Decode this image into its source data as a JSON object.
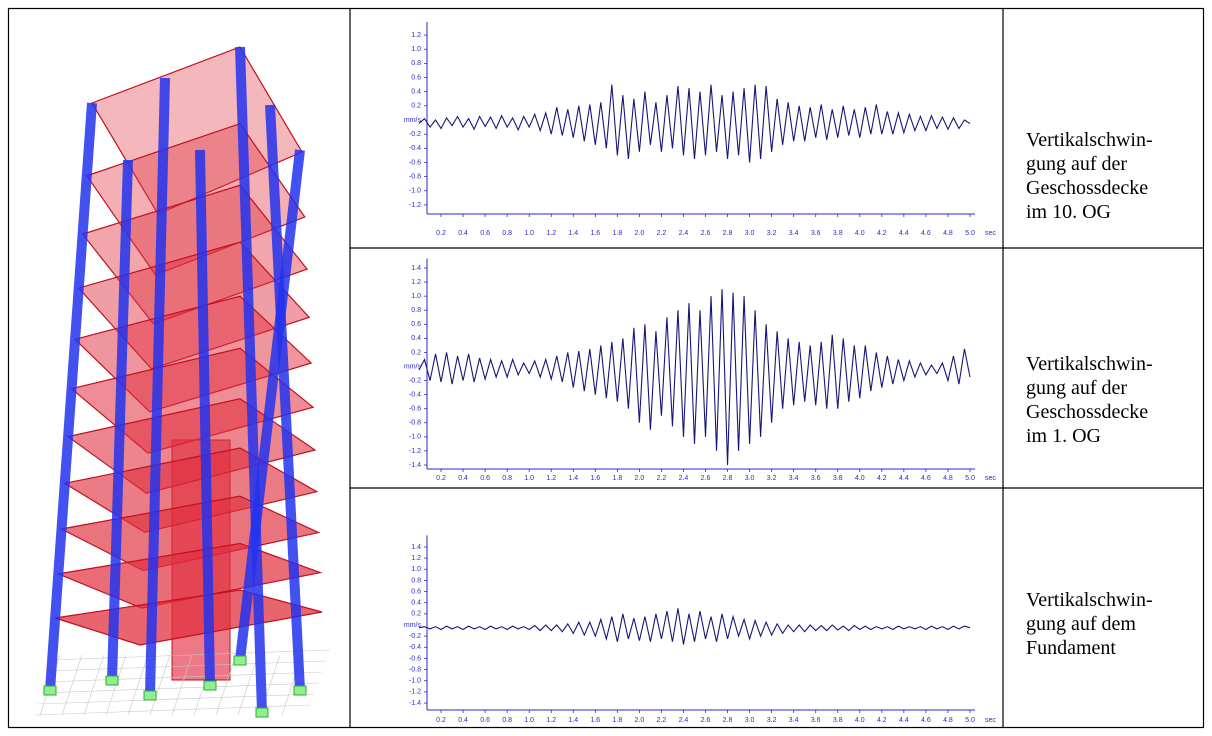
{
  "chart_data": [
    {
      "type": "line",
      "y_label": "mm/s",
      "x_label": "sec",
      "color": "#16167a",
      "axis_color": "#2b2bd0",
      "x": [
        0,
        0.05,
        0.1,
        0.15,
        0.2,
        0.25,
        0.3,
        0.35,
        0.4,
        0.45,
        0.5,
        0.55,
        0.6,
        0.65,
        0.7,
        0.75,
        0.8,
        0.85,
        0.9,
        0.95,
        1,
        1.05,
        1.1,
        1.15,
        1.2,
        1.25,
        1.3,
        1.35,
        1.4,
        1.45,
        1.5,
        1.55,
        1.6,
        1.65,
        1.7,
        1.75,
        1.8,
        1.85,
        1.9,
        1.95,
        2,
        2.05,
        2.1,
        2.15,
        2.2,
        2.25,
        2.3,
        2.35,
        2.4,
        2.45,
        2.5,
        2.55,
        2.6,
        2.65,
        2.7,
        2.75,
        2.8,
        2.85,
        2.9,
        2.95,
        3,
        3.05,
        3.1,
        3.15,
        3.2,
        3.25,
        3.3,
        3.35,
        3.4,
        3.45,
        3.5,
        3.55,
        3.6,
        3.65,
        3.7,
        3.75,
        3.8,
        3.85,
        3.9,
        3.95,
        4,
        4.05,
        4.1,
        4.15,
        4.2,
        4.25,
        4.3,
        4.35,
        4.4,
        4.45,
        4.5,
        4.55,
        4.6,
        4.65,
        4.7,
        4.75,
        4.8,
        4.85,
        4.9,
        4.95,
        5
      ],
      "values": [
        -0.05,
        0.02,
        -0.1,
        0.0,
        -0.12,
        0.03,
        -0.08,
        0.05,
        -0.1,
        0.02,
        -0.13,
        0.05,
        -0.09,
        0.04,
        -0.12,
        0.06,
        -0.1,
        0.03,
        -0.14,
        0.05,
        -0.1,
        0.08,
        -0.15,
        0.1,
        -0.2,
        0.18,
        -0.22,
        0.15,
        -0.25,
        0.2,
        -0.3,
        0.22,
        -0.35,
        0.25,
        -0.4,
        0.5,
        -0.5,
        0.35,
        -0.55,
        0.3,
        -0.45,
        0.4,
        -0.35,
        0.25,
        -0.45,
        0.35,
        -0.4,
        0.48,
        -0.5,
        0.45,
        -0.55,
        0.4,
        -0.5,
        0.5,
        -0.45,
        0.35,
        -0.55,
        0.4,
        -0.5,
        0.45,
        -0.6,
        0.5,
        -0.55,
        0.48,
        -0.45,
        0.3,
        -0.35,
        0.25,
        -0.3,
        0.2,
        -0.3,
        0.18,
        -0.25,
        0.22,
        -0.28,
        0.15,
        -0.25,
        0.2,
        -0.22,
        0.15,
        -0.25,
        0.18,
        -0.2,
        0.22,
        -0.2,
        0.12,
        -0.2,
        0.1,
        -0.18,
        0.08,
        -0.15,
        0.05,
        -0.15,
        0.06,
        -0.12,
        0.04,
        -0.13,
        0.03,
        -0.12,
        0.0,
        -0.05
      ],
      "xlim": [
        0,
        5.1
      ],
      "ylim": [
        -1.3,
        1.3
      ],
      "xticks": [
        0.2,
        0.4,
        0.6,
        0.8,
        {
          "value": 1,
          "label": "1.0"
        },
        1.2,
        1.4,
        1.6,
        1.8,
        {
          "value": 2,
          "label": "2.0"
        },
        2.2,
        2.4,
        2.6,
        2.8,
        {
          "value": 3,
          "label": "3.0"
        },
        3.2,
        3.4,
        3.6,
        3.8,
        {
          "value": 4,
          "label": "4.0"
        },
        4.2,
        4.4,
        4.6,
        4.8,
        {
          "value": 5,
          "label": "5.0"
        }
      ],
      "yticks": [
        1.2,
        {
          "value": 1,
          "label": "1.0"
        },
        0.8,
        0.6,
        0.4,
        0.2,
        -0.2,
        -0.4,
        -0.6,
        -0.8,
        {
          "value": -1,
          "label": "-1.0"
        },
        -1.2
      ]
    },
    {
      "type": "line",
      "y_label": "mm/s",
      "x_label": "sec",
      "color": "#16167a",
      "axis_color": "#2b2bd0",
      "x": [
        0,
        0.05,
        0.1,
        0.15,
        0.2,
        0.25,
        0.3,
        0.35,
        0.4,
        0.45,
        0.5,
        0.55,
        0.6,
        0.65,
        0.7,
        0.75,
        0.8,
        0.85,
        0.9,
        0.95,
        1,
        1.05,
        1.1,
        1.15,
        1.2,
        1.25,
        1.3,
        1.35,
        1.4,
        1.45,
        1.5,
        1.55,
        1.6,
        1.65,
        1.7,
        1.75,
        1.8,
        1.85,
        1.9,
        1.95,
        2,
        2.05,
        2.1,
        2.15,
        2.2,
        2.25,
        2.3,
        2.35,
        2.4,
        2.45,
        2.5,
        2.55,
        2.6,
        2.65,
        2.7,
        2.75,
        2.8,
        2.85,
        2.9,
        2.95,
        3,
        3.05,
        3.1,
        3.15,
        3.2,
        3.25,
        3.3,
        3.35,
        3.4,
        3.45,
        3.5,
        3.55,
        3.6,
        3.65,
        3.7,
        3.75,
        3.8,
        3.85,
        3.9,
        3.95,
        4,
        4.05,
        4.1,
        4.15,
        4.2,
        4.25,
        4.3,
        4.35,
        4.4,
        4.45,
        4.5,
        4.55,
        4.6,
        4.65,
        4.7,
        4.75,
        4.8,
        4.85,
        4.9,
        4.95,
        5
      ],
      "values": [
        -0.05,
        0.1,
        -0.2,
        0.18,
        -0.22,
        0.2,
        -0.25,
        0.15,
        -0.2,
        0.18,
        -0.22,
        0.12,
        -0.18,
        0.1,
        -0.15,
        0.08,
        -0.15,
        0.1,
        -0.12,
        0.05,
        -0.1,
        0.08,
        -0.15,
        0.1,
        -0.18,
        0.15,
        -0.22,
        0.2,
        -0.3,
        0.22,
        -0.35,
        0.25,
        -0.4,
        0.3,
        -0.45,
        0.35,
        -0.5,
        0.4,
        -0.6,
        0.55,
        -0.8,
        0.6,
        -0.9,
        0.5,
        -0.7,
        0.7,
        -0.85,
        0.8,
        -1.0,
        0.9,
        -1.1,
        0.8,
        -1.0,
        1.0,
        -1.2,
        1.1,
        -1.4,
        1.05,
        -1.2,
        1.0,
        -1.1,
        0.8,
        -1.0,
        0.6,
        -0.8,
        0.5,
        -0.6,
        0.4,
        -0.55,
        0.35,
        -0.5,
        0.3,
        -0.55,
        0.35,
        -0.6,
        0.45,
        -0.6,
        0.4,
        -0.5,
        0.3,
        -0.45,
        0.3,
        -0.35,
        0.2,
        -0.3,
        0.15,
        -0.25,
        0.1,
        -0.2,
        0.08,
        -0.15,
        0.05,
        -0.12,
        0.02,
        -0.1,
        0.05,
        -0.2,
        0.15,
        -0.25,
        0.25,
        -0.15
      ],
      "xlim": [
        0,
        5.1
      ],
      "ylim": [
        -1.45,
        1.45
      ],
      "xticks": [
        0.2,
        0.4,
        0.6,
        0.8,
        {
          "value": 1,
          "label": "1.0"
        },
        1.2,
        1.4,
        1.6,
        1.8,
        {
          "value": 2,
          "label": "2.0"
        },
        2.2,
        2.4,
        2.6,
        2.8,
        {
          "value": 3,
          "label": "3.0"
        },
        3.2,
        3.4,
        3.6,
        3.8,
        {
          "value": 4,
          "label": "4.0"
        },
        4.2,
        4.4,
        4.6,
        4.8,
        {
          "value": 5,
          "label": "5.0"
        }
      ],
      "yticks": [
        1.4,
        1.2,
        {
          "value": 1,
          "label": "1.0"
        },
        0.8,
        0.6,
        0.4,
        0.2,
        -0.2,
        -0.4,
        -0.6,
        -0.8,
        {
          "value": -1,
          "label": "-1.0"
        },
        -1.2,
        -1.4
      ]
    },
    {
      "type": "line",
      "y_label": "mm/s",
      "x_label": "sec",
      "color": "#16167a",
      "axis_color": "#2b2bd0",
      "x": [
        0,
        0.05,
        0.1,
        0.15,
        0.2,
        0.25,
        0.3,
        0.35,
        0.4,
        0.45,
        0.5,
        0.55,
        0.6,
        0.65,
        0.7,
        0.75,
        0.8,
        0.85,
        0.9,
        0.95,
        1,
        1.05,
        1.1,
        1.15,
        1.2,
        1.25,
        1.3,
        1.35,
        1.4,
        1.45,
        1.5,
        1.55,
        1.6,
        1.65,
        1.7,
        1.75,
        1.8,
        1.85,
        1.9,
        1.95,
        2,
        2.05,
        2.1,
        2.15,
        2.2,
        2.25,
        2.3,
        2.35,
        2.4,
        2.45,
        2.5,
        2.55,
        2.6,
        2.65,
        2.7,
        2.75,
        2.8,
        2.85,
        2.9,
        2.95,
        3,
        3.05,
        3.1,
        3.15,
        3.2,
        3.25,
        3.3,
        3.35,
        3.4,
        3.45,
        3.5,
        3.55,
        3.6,
        3.65,
        3.7,
        3.75,
        3.8,
        3.85,
        3.9,
        3.95,
        4,
        4.05,
        4.1,
        4.15,
        4.2,
        4.25,
        4.3,
        4.35,
        4.4,
        4.45,
        4.5,
        4.55,
        4.6,
        4.65,
        4.7,
        4.75,
        4.8,
        4.85,
        4.9,
        4.95,
        5
      ],
      "values": [
        -0.05,
        -0.03,
        -0.07,
        -0.03,
        -0.08,
        -0.02,
        -0.07,
        -0.03,
        -0.08,
        -0.02,
        -0.07,
        -0.03,
        -0.08,
        -0.02,
        -0.07,
        -0.03,
        -0.08,
        -0.02,
        -0.07,
        -0.03,
        -0.08,
        -0.01,
        -0.1,
        0.0,
        -0.1,
        0.0,
        -0.12,
        0.02,
        -0.15,
        0.05,
        -0.18,
        0.05,
        -0.2,
        0.1,
        -0.25,
        0.15,
        -0.3,
        0.2,
        -0.25,
        0.12,
        -0.28,
        0.15,
        -0.3,
        0.2,
        -0.25,
        0.25,
        -0.3,
        0.3,
        -0.35,
        0.2,
        -0.3,
        0.25,
        -0.25,
        0.15,
        -0.3,
        0.2,
        -0.25,
        0.15,
        -0.2,
        0.1,
        -0.25,
        0.08,
        -0.2,
        0.05,
        -0.18,
        0.02,
        -0.15,
        0.0,
        -0.12,
        0.0,
        -0.12,
        0.0,
        -0.1,
        -0.01,
        -0.1,
        0.0,
        -0.09,
        -0.02,
        -0.1,
        -0.01,
        -0.08,
        -0.02,
        -0.08,
        -0.03,
        -0.07,
        -0.03,
        -0.08,
        -0.02,
        -0.07,
        -0.03,
        -0.07,
        -0.03,
        -0.08,
        -0.02,
        -0.07,
        -0.03,
        -0.08,
        -0.02,
        -0.07,
        -0.02,
        -0.05
      ],
      "xlim": [
        0,
        5.1
      ],
      "ylim": [
        -1.5,
        1.5
      ],
      "xticks": [
        0.2,
        0.4,
        0.6,
        0.8,
        {
          "value": 1,
          "label": "1.0"
        },
        1.2,
        1.4,
        1.6,
        1.8,
        {
          "value": 2,
          "label": "2.0"
        },
        2.2,
        2.4,
        2.6,
        2.8,
        {
          "value": 3,
          "label": "3.0"
        },
        3.2,
        3.4,
        3.6,
        3.8,
        {
          "value": 4,
          "label": "4.0"
        },
        4.2,
        4.4,
        4.6,
        4.8,
        {
          "value": 5,
          "label": "5.0"
        }
      ],
      "yticks": [
        1.4,
        1.2,
        {
          "value": 1,
          "label": "1.0"
        },
        0.8,
        0.6,
        0.4,
        0.2,
        -0.2,
        -0.4,
        -0.6,
        -0.8,
        {
          "value": -1,
          "label": "-1.0"
        },
        -1.2,
        -1.4
      ]
    }
  ],
  "captions": [
    [
      "Vertikalschwin-",
      "gung auf der",
      "Geschossdecke",
      "im 10. OG"
    ],
    [
      "Vertikalschwin-",
      "gung auf der",
      "Geschossdecke",
      "im 1. OG"
    ],
    [
      "Vertikalschwin-",
      "gung auf dem",
      "Fundament"
    ]
  ]
}
